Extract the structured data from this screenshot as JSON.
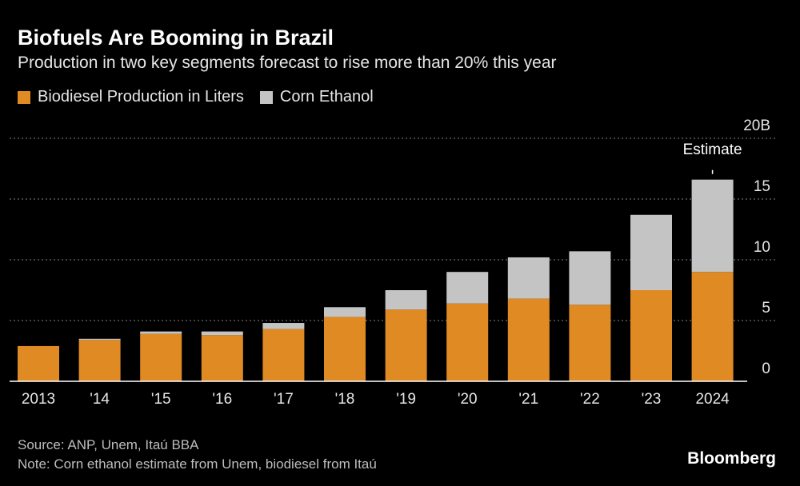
{
  "header": {
    "title": "Biofuels Are Booming in Brazil",
    "subtitle": "Production in two key segments forecast to rise more than 20% this year"
  },
  "colors": {
    "biodiesel": "#e08a24",
    "corn_ethanol": "#c4c4c4",
    "background": "#000000",
    "gridline": "#888888"
  },
  "chart_data": {
    "type": "bar",
    "stacked": true,
    "title": "Biofuels Are Booming in Brazil",
    "subtitle": "Production in two key segments forecast to rise more than 20% this year",
    "categories": [
      "2013",
      "'14",
      "'15",
      "'16",
      "'17",
      "'18",
      "'19",
      "'20",
      "'21",
      "'22",
      "'23",
      "2024"
    ],
    "series": [
      {
        "name": "Biodiesel Production in Liters",
        "values": [
          2.9,
          3.4,
          3.9,
          3.8,
          4.3,
          5.3,
          5.9,
          6.4,
          6.8,
          6.3,
          7.5,
          9.0
        ]
      },
      {
        "name": "Corn Ethanol",
        "values": [
          0.0,
          0.1,
          0.2,
          0.3,
          0.5,
          0.8,
          1.6,
          2.6,
          3.4,
          4.4,
          6.2,
          7.6
        ]
      }
    ],
    "ylim": [
      0,
      20
    ],
    "y_ticks": [
      "0",
      "5",
      "10",
      "15",
      "20B"
    ],
    "y_axis_side": "right",
    "grid": true,
    "legend_position": "top-left",
    "annotation": {
      "category": "2024",
      "text": "Estimate"
    }
  },
  "footer": {
    "source": "Source: ANP, Unem, Itaú BBA",
    "note": "Note: Corn ethanol estimate from Unem, biodiesel from Itaú",
    "brand": "Bloomberg"
  }
}
